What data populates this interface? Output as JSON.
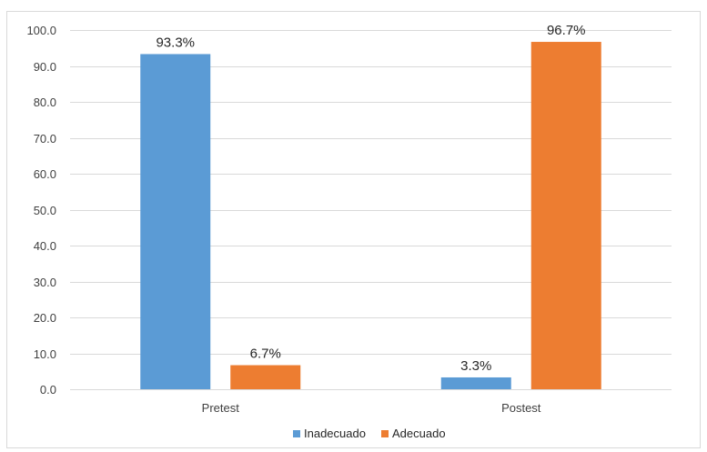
{
  "chart_data": {
    "type": "bar",
    "categories": [
      "Pretest",
      "Postest"
    ],
    "series": [
      {
        "name": "Inadecuado",
        "values": [
          93.3,
          3.3
        ],
        "labels": [
          "93.3%",
          "3.3%"
        ],
        "color": "#5b9bd5"
      },
      {
        "name": "Adecuado",
        "values": [
          6.7,
          96.7
        ],
        "labels": [
          "6.7%",
          "96.7%"
        ],
        "color": "#ed7d31"
      }
    ],
    "y_ticks": [
      "0.0",
      "10.0",
      "20.0",
      "30.0",
      "40.0",
      "50.0",
      "60.0",
      "70.0",
      "80.0",
      "90.0",
      "100.0"
    ],
    "ylim": [
      0,
      100
    ],
    "grid": true,
    "legend_position": "bottom",
    "gridline_color": "#d9d9d9"
  }
}
